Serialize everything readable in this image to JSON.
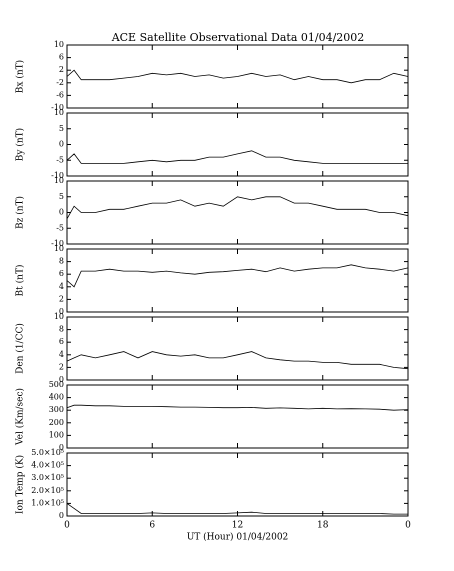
{
  "chart_data": [
    {
      "type": "line",
      "title": "ACE Satellite Observational Data   01/04/2002",
      "ylabel": "Bx (nT)",
      "color": "#000000",
      "x": [
        0,
        0.5,
        1,
        2,
        3,
        4,
        5,
        6,
        7,
        8,
        9,
        10,
        11,
        12,
        13,
        14,
        15,
        16,
        17,
        18,
        19,
        20,
        21,
        22,
        23,
        24
      ],
      "values": [
        0,
        2,
        -1,
        -1,
        -1,
        -0.5,
        0,
        1,
        0.5,
        1,
        0,
        0.5,
        -0.5,
        0,
        1,
        0,
        0.5,
        -1,
        0,
        -1,
        -1,
        -2,
        -1,
        -1,
        1,
        0
      ],
      "xlim": [
        0,
        24
      ],
      "ylim": [
        -10,
        10
      ],
      "yticks": [
        -10,
        -6,
        -2,
        2,
        6,
        10
      ]
    },
    {
      "type": "line",
      "ylabel": "By (nT)",
      "color": "#000000",
      "x": [
        0,
        0.5,
        1,
        2,
        3,
        4,
        5,
        6,
        7,
        8,
        9,
        10,
        11,
        12,
        13,
        14,
        15,
        16,
        17,
        18,
        19,
        20,
        21,
        22,
        23,
        24
      ],
      "values": [
        -5,
        -3,
        -6,
        -6,
        -6,
        -6,
        -5.5,
        -5,
        -5.5,
        -5,
        -5,
        -4,
        -4,
        -3,
        -2,
        -4,
        -4,
        -5,
        -5.5,
        -6,
        -6,
        -6,
        -6,
        -6,
        -6,
        -6
      ],
      "xlim": [
        0,
        24
      ],
      "ylim": [
        -10,
        10
      ],
      "yticks": [
        -10,
        -5,
        0,
        5,
        10
      ]
    },
    {
      "type": "line",
      "ylabel": "Bz (nT)",
      "color": "#000000",
      "x": [
        0,
        0.5,
        1,
        2,
        3,
        4,
        5,
        6,
        7,
        8,
        9,
        10,
        11,
        12,
        13,
        14,
        15,
        16,
        17,
        18,
        19,
        20,
        21,
        22,
        23,
        24
      ],
      "values": [
        -2,
        2,
        0,
        0,
        1,
        1,
        2,
        3,
        3,
        4,
        2,
        3,
        2,
        5,
        4,
        5,
        5,
        3,
        3,
        2,
        1,
        1,
        1,
        0,
        0,
        -1
      ],
      "xlim": [
        0,
        24
      ],
      "ylim": [
        -10,
        10
      ],
      "yticks": [
        -10,
        -5,
        0,
        5,
        10
      ]
    },
    {
      "type": "line",
      "ylabel": "Bt (nT)",
      "color": "#000000",
      "x": [
        0,
        0.5,
        1,
        2,
        3,
        4,
        5,
        6,
        7,
        8,
        9,
        10,
        11,
        12,
        13,
        14,
        15,
        16,
        17,
        18,
        19,
        20,
        21,
        22,
        23,
        24
      ],
      "values": [
        5,
        4,
        6.5,
        6.5,
        6.8,
        6.5,
        6.5,
        6.3,
        6.5,
        6.2,
        6,
        6.3,
        6.4,
        6.6,
        6.8,
        6.4,
        7,
        6.5,
        6.8,
        7,
        7,
        7.5,
        7,
        6.8,
        6.5,
        7
      ],
      "xlim": [
        0,
        24
      ],
      "ylim": [
        0,
        10
      ],
      "yticks": [
        0,
        2,
        4,
        6,
        8,
        10
      ]
    },
    {
      "type": "line",
      "ylabel": "Den (1/CC)",
      "color": "#000000",
      "x": [
        0,
        0.5,
        1,
        2,
        3,
        4,
        5,
        6,
        7,
        8,
        9,
        10,
        11,
        12,
        13,
        14,
        15,
        16,
        17,
        18,
        19,
        20,
        21,
        22,
        23,
        24
      ],
      "values": [
        3,
        3.5,
        4,
        3.5,
        4,
        4.5,
        3.5,
        4.5,
        4,
        3.8,
        4,
        3.5,
        3.5,
        4,
        4.5,
        3.5,
        3.2,
        3,
        3,
        2.8,
        2.8,
        2.5,
        2.5,
        2.5,
        2,
        1.8
      ],
      "xlim": [
        0,
        24
      ],
      "ylim": [
        0,
        10
      ],
      "yticks": [
        0,
        2,
        4,
        6,
        8,
        10
      ]
    },
    {
      "type": "line",
      "ylabel": "Vel (Km/sec)",
      "color": "#000000",
      "x": [
        0,
        0.5,
        1,
        2,
        3,
        4,
        5,
        6,
        7,
        8,
        9,
        10,
        11,
        12,
        13,
        14,
        15,
        16,
        17,
        18,
        19,
        20,
        21,
        22,
        23,
        24
      ],
      "values": [
        320,
        340,
        340,
        335,
        335,
        330,
        330,
        330,
        328,
        325,
        325,
        322,
        320,
        320,
        322,
        315,
        318,
        315,
        310,
        315,
        310,
        312,
        310,
        308,
        300,
        305
      ],
      "xlim": [
        0,
        24
      ],
      "ylim": [
        0,
        500
      ],
      "yticks": [
        0,
        100,
        200,
        300,
        400,
        500
      ]
    },
    {
      "type": "line",
      "ylabel": "Ion Temp (K)",
      "xlabel": "UT (Hour)  01/04/2002",
      "color": "#000000",
      "x": [
        0,
        0.5,
        1,
        2,
        3,
        4,
        5,
        6,
        7,
        8,
        9,
        10,
        11,
        12,
        13,
        14,
        15,
        16,
        17,
        18,
        19,
        20,
        21,
        22,
        23,
        24
      ],
      "values": [
        100000,
        60000,
        20000,
        20000,
        20000,
        20000,
        20000,
        25000,
        20000,
        20000,
        20000,
        20000,
        20000,
        25000,
        30000,
        20000,
        20000,
        20000,
        20000,
        20000,
        20000,
        20000,
        20000,
        20000,
        15000,
        15000
      ],
      "xlim": [
        0,
        24
      ],
      "ylim": [
        0,
        500000
      ],
      "yticks": [
        0,
        {
          "value": 100000,
          "label": "1.0×10⁵"
        },
        {
          "value": 200000,
          "label": "2.0×10⁵"
        },
        {
          "value": 300000,
          "label": "3.0×10⁵"
        },
        {
          "value": 400000,
          "label": "4.0×10⁵"
        },
        {
          "value": 500000,
          "label": "5.0×10⁵"
        }
      ],
      "xticks": [
        0,
        6,
        12,
        18,
        {
          "value": 24,
          "label": "0"
        }
      ]
    }
  ]
}
